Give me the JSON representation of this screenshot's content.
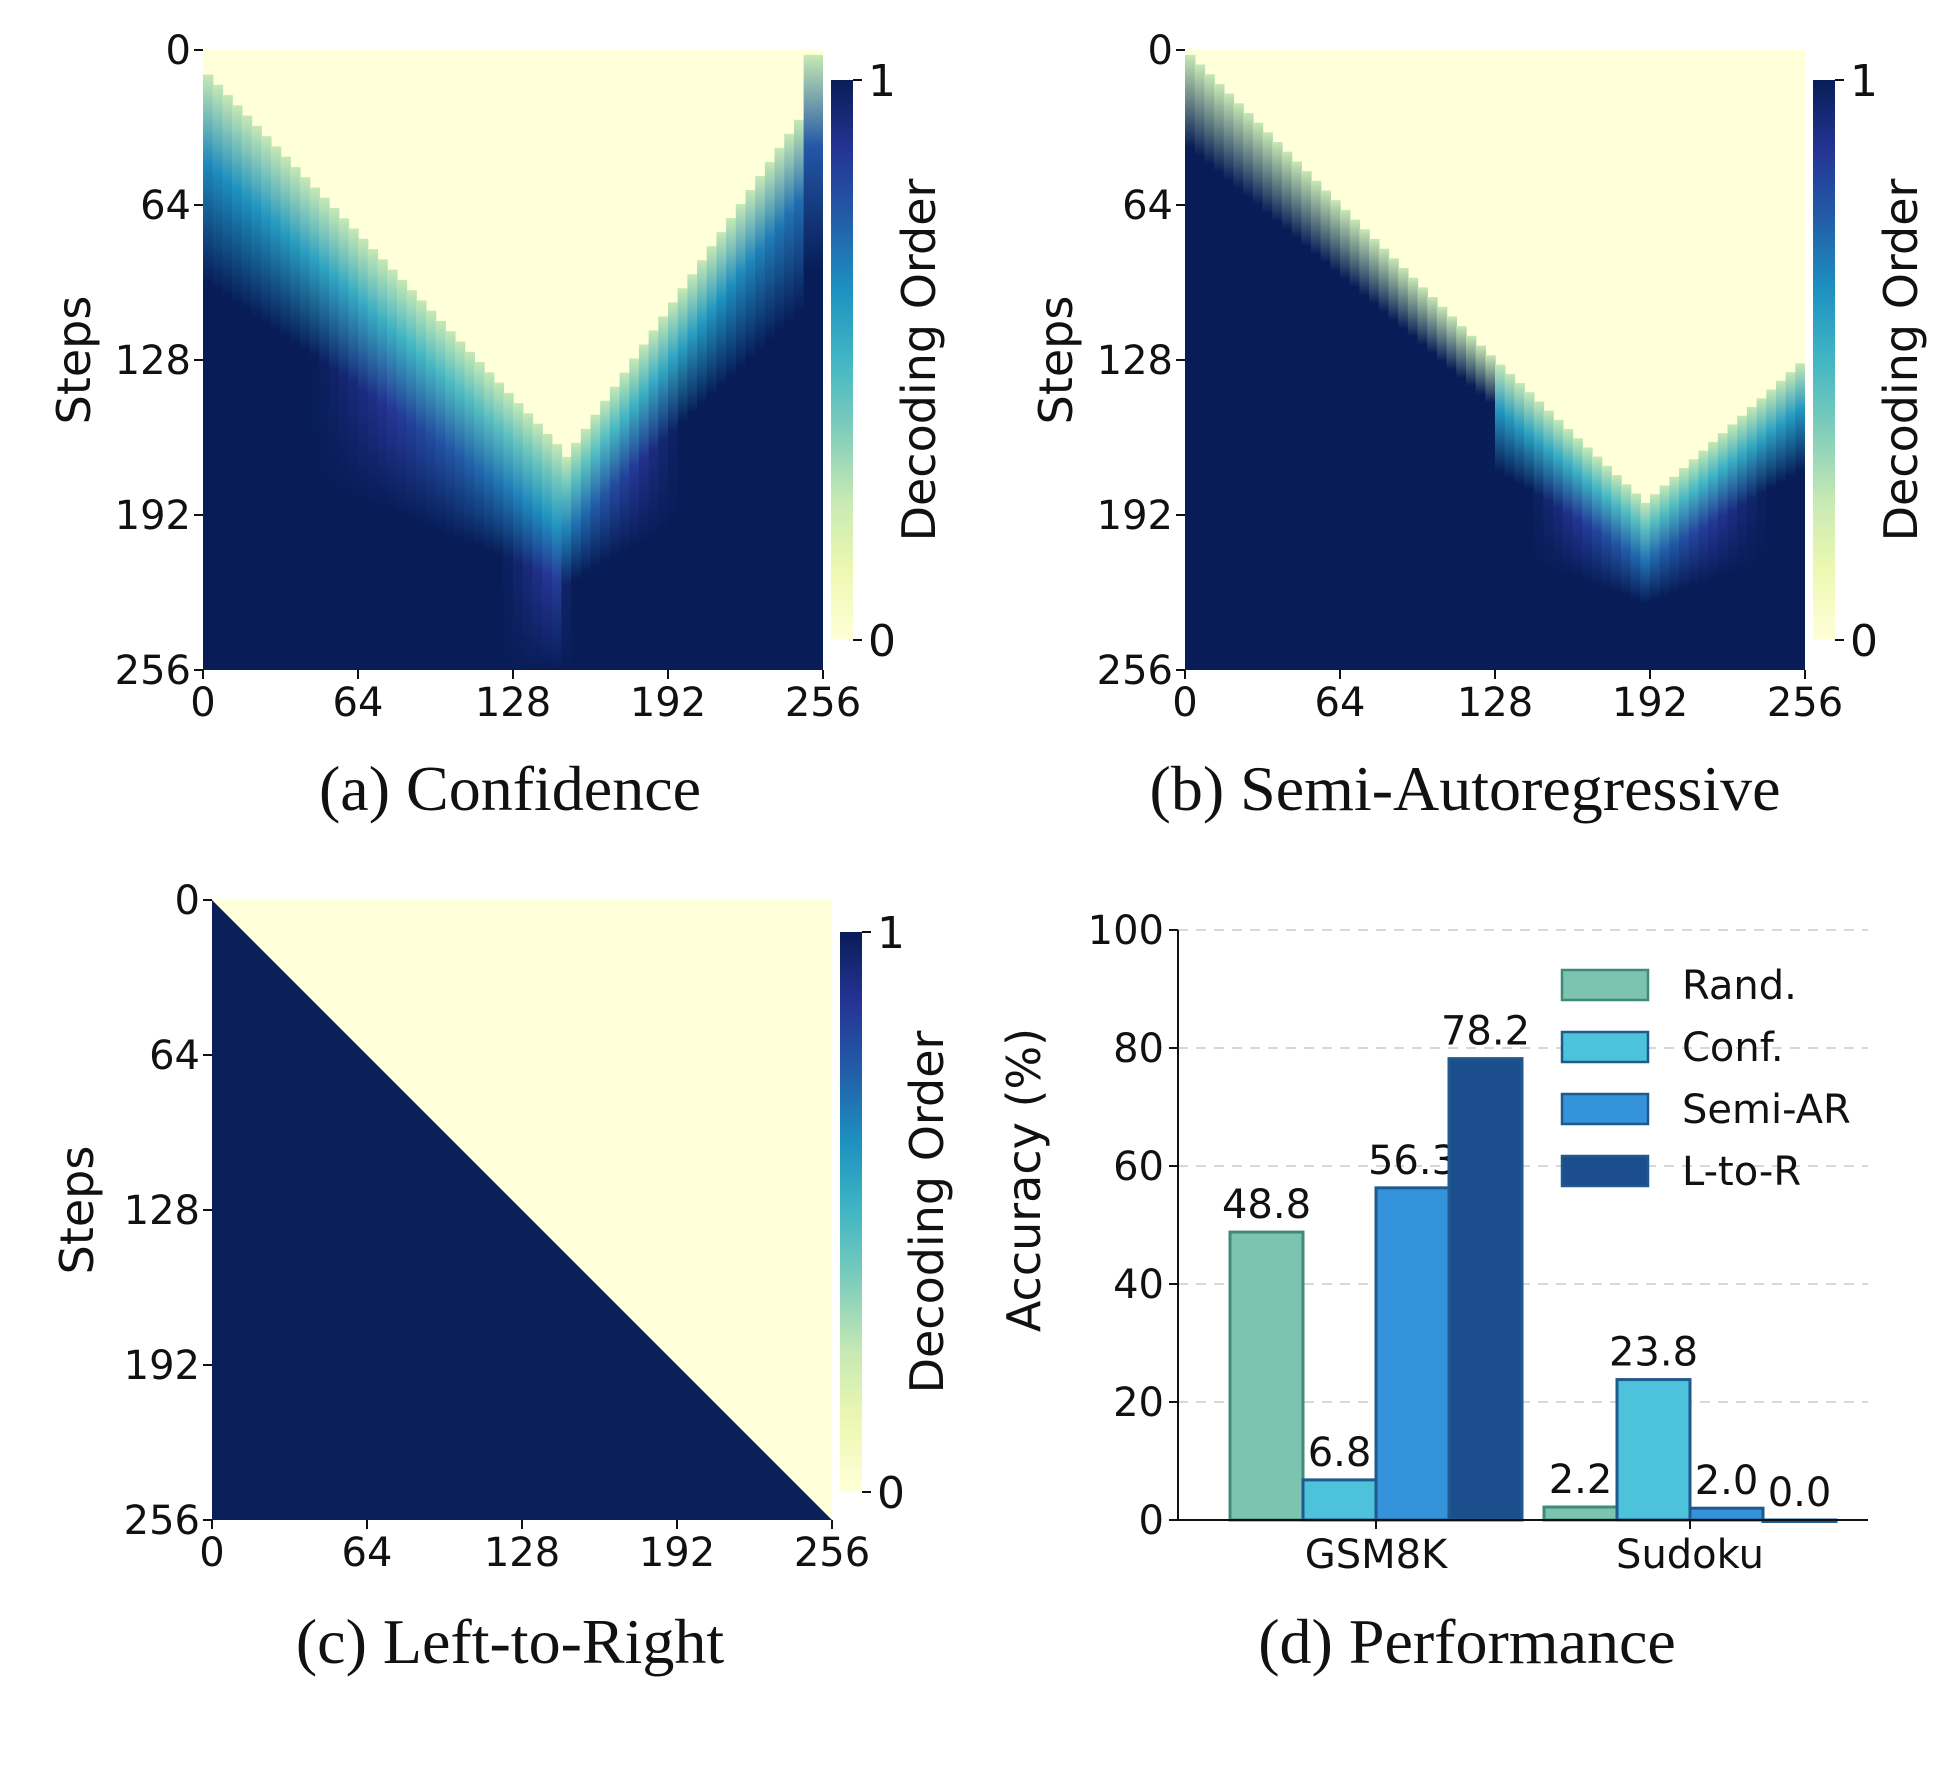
{
  "colors": {
    "cmap": [
      "#ffffd9",
      "#edf8b1",
      "#c7e9b4",
      "#7fcdbb",
      "#41b6c4",
      "#1d91c0",
      "#225ea8",
      "#253494",
      "#081d58"
    ],
    "low": "#ffffd9",
    "high": "#0b1f5a",
    "rand": "#7cc4b0",
    "conf": "#4cc3da",
    "semi": "#3593db",
    "ltor": "#1c4e8e",
    "grid": "#cccccc"
  },
  "panels": [
    {
      "caption": "(a) Confidence",
      "ylabel": "Steps",
      "colorbar_label": "Decoding Order",
      "colorbar_ticks": [
        "1",
        "0"
      ],
      "x_ticks": [
        "0",
        "64",
        "128",
        "192",
        "256"
      ],
      "y_ticks": [
        "0",
        "64",
        "128",
        "192",
        "256"
      ]
    },
    {
      "caption": "(b) Semi-Autoregressive",
      "ylabel": "Steps",
      "colorbar_label": "Decoding Order",
      "colorbar_ticks": [
        "1",
        "0"
      ],
      "x_ticks": [
        "0",
        "64",
        "128",
        "192",
        "256"
      ],
      "y_ticks": [
        "0",
        "64",
        "128",
        "192",
        "256"
      ]
    },
    {
      "caption": "(c) Left-to-Right",
      "ylabel": "Steps",
      "colorbar_label": "Decoding Order",
      "colorbar_ticks": [
        "1",
        "0"
      ],
      "x_ticks": [
        "0",
        "64",
        "128",
        "192",
        "256"
      ],
      "y_ticks": [
        "0",
        "64",
        "128",
        "192",
        "256"
      ]
    }
  ],
  "chart_data": [
    {
      "type": "heatmap",
      "title": "(a) Confidence",
      "ylabel": "Steps",
      "colorbar_label": "Decoding Order",
      "x_range": [
        0,
        256
      ],
      "y_range": [
        0,
        256
      ],
      "color_range": [
        0,
        1
      ],
      "pattern": "V-shaped frontier: tokens decoded from both ends inward, meeting near position ~155 around step ~170"
    },
    {
      "type": "heatmap",
      "title": "(b) Semi-Autoregressive",
      "ylabel": "Steps",
      "colorbar_label": "Decoding Order",
      "x_range": [
        0,
        256
      ],
      "y_range": [
        0,
        256
      ],
      "color_range": [
        0,
        1
      ],
      "pattern": "First block (0-128) decoded left-to-right over steps 0-128; second block (128-256) decoded V-shaped over steps 128-256"
    },
    {
      "type": "heatmap",
      "title": "(c) Left-to-Right",
      "ylabel": "Steps",
      "colorbar_label": "Decoding Order",
      "x_range": [
        0,
        256
      ],
      "y_range": [
        0,
        256
      ],
      "color_range": [
        0,
        1
      ],
      "pattern": "Strict diagonal: position i decoded at step i"
    },
    {
      "type": "bar",
      "title": "(d) Performance",
      "ylabel": "Accuracy (%)",
      "ylim": [
        0,
        100
      ],
      "yticks": [
        "0",
        "20",
        "40",
        "60",
        "80",
        "100"
      ],
      "categories": [
        "GSM8K",
        "Sudoku"
      ],
      "series": [
        {
          "name": "Rand.",
          "values": [
            48.8,
            2.2
          ],
          "labels": [
            "48.8",
            "2.2"
          ],
          "color_key": "rand"
        },
        {
          "name": "Conf.",
          "values": [
            6.8,
            23.8
          ],
          "labels": [
            "6.8",
            "23.8"
          ],
          "color_key": "conf"
        },
        {
          "name": "Semi-AR",
          "values": [
            56.3,
            2.0
          ],
          "labels": [
            "56.3",
            "2.0"
          ],
          "color_key": "semi"
        },
        {
          "name": "L-to-R",
          "values": [
            78.2,
            0.0
          ],
          "labels": [
            "78.2",
            "0.0"
          ],
          "color_key": "ltor"
        }
      ],
      "grid": "horizontal dashed",
      "legend": "top-right"
    }
  ]
}
